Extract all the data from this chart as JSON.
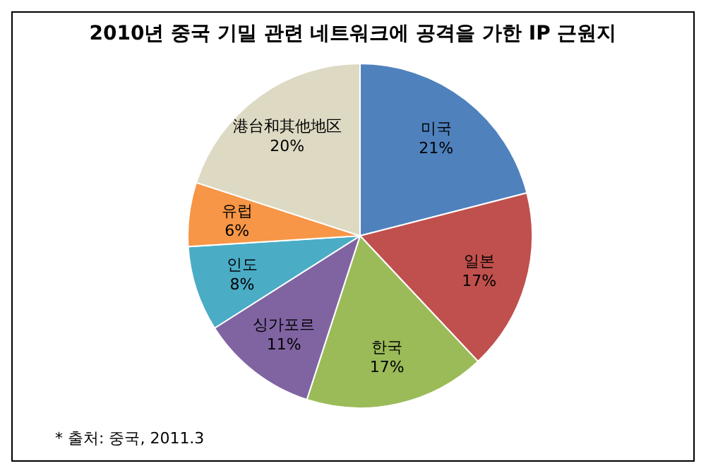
{
  "chart_data": {
    "type": "pie",
    "title": "2010년 중국 기밀 관련 네트워크에 공격을 가한 IP 근원지",
    "categories": [
      "미국",
      "일본",
      "한국",
      "싱가포르",
      "인도",
      "유럽",
      "港台和其他地区"
    ],
    "values": [
      21,
      17,
      17,
      11,
      8,
      6,
      20
    ],
    "colors": [
      "#4f81bd",
      "#c0504d",
      "#9bbb59",
      "#8064a2",
      "#4bacc6",
      "#f79646",
      "#ddd9c3"
    ],
    "value_labels": [
      "21%",
      "17%",
      "17%",
      "11%",
      "8%",
      "6%",
      "20%"
    ],
    "annotations": [
      "* 출처: 중국, 2011.3"
    ]
  }
}
